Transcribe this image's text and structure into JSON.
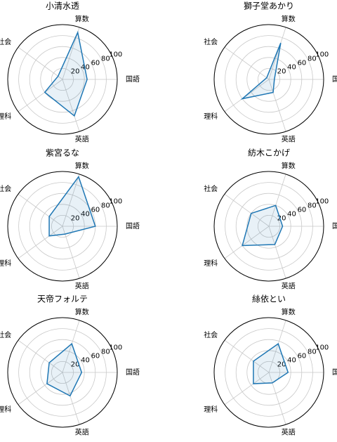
{
  "chart_data": [
    {
      "type": "radar",
      "title": "小清水透",
      "categories": [
        "国語",
        "算数",
        "社会",
        "理科",
        "英語"
      ],
      "series": [
        {
          "color": "#1f77b4",
          "values": [
            45,
            90,
            10,
            40,
            70
          ]
        }
      ],
      "ylim": [
        0,
        100
      ],
      "yticks": [
        20,
        40,
        60,
        80,
        100
      ],
      "grid": true
    },
    {
      "type": "radar",
      "title": "獅子堂あかり",
      "categories": [
        "国語",
        "算数",
        "社会",
        "理科",
        "英語"
      ],
      "series": [
        {
          "color": "#1f77b4",
          "values": [
            10,
            70,
            5,
            60,
            25
          ]
        }
      ],
      "ylim": [
        0,
        100
      ],
      "yticks": [
        20,
        40,
        60,
        80,
        100
      ],
      "grid": true
    },
    {
      "type": "radar",
      "title": "紫宮るな",
      "categories": [
        "国語",
        "算数",
        "社会",
        "理科",
        "英語"
      ],
      "series": [
        {
          "color": "#1f77b4",
          "values": [
            60,
            95,
            30,
            30,
            15
          ]
        }
      ],
      "ylim": [
        0,
        100
      ],
      "yticks": [
        20,
        40,
        60,
        80,
        100
      ],
      "grid": true
    },
    {
      "type": "radar",
      "title": "紡木こかげ",
      "categories": [
        "国語",
        "算数",
        "社会",
        "理科",
        "英語"
      ],
      "series": [
        {
          "color": "#1f77b4",
          "values": [
            25,
            40,
            40,
            60,
            35
          ]
        }
      ],
      "ylim": [
        0,
        100
      ],
      "yticks": [
        20,
        40,
        60,
        80,
        100
      ],
      "grid": true
    },
    {
      "type": "radar",
      "title": "天帝フォルテ",
      "categories": [
        "国語",
        "算数",
        "社会",
        "理科",
        "英語"
      ],
      "series": [
        {
          "color": "#1f77b4",
          "values": [
            35,
            55,
            30,
            35,
            45
          ]
        }
      ],
      "ylim": [
        0,
        100
      ],
      "yticks": [
        20,
        40,
        60,
        80,
        100
      ],
      "grid": true
    },
    {
      "type": "radar",
      "title": "絲依とい",
      "categories": [
        "国語",
        "算数",
        "社会",
        "理科",
        "英語"
      ],
      "series": [
        {
          "color": "#1f77b4",
          "values": [
            35,
            55,
            35,
            35,
            20
          ]
        }
      ],
      "ylim": [
        0,
        100
      ],
      "yticks": [
        20,
        40,
        60,
        80,
        100
      ],
      "grid": true
    }
  ]
}
